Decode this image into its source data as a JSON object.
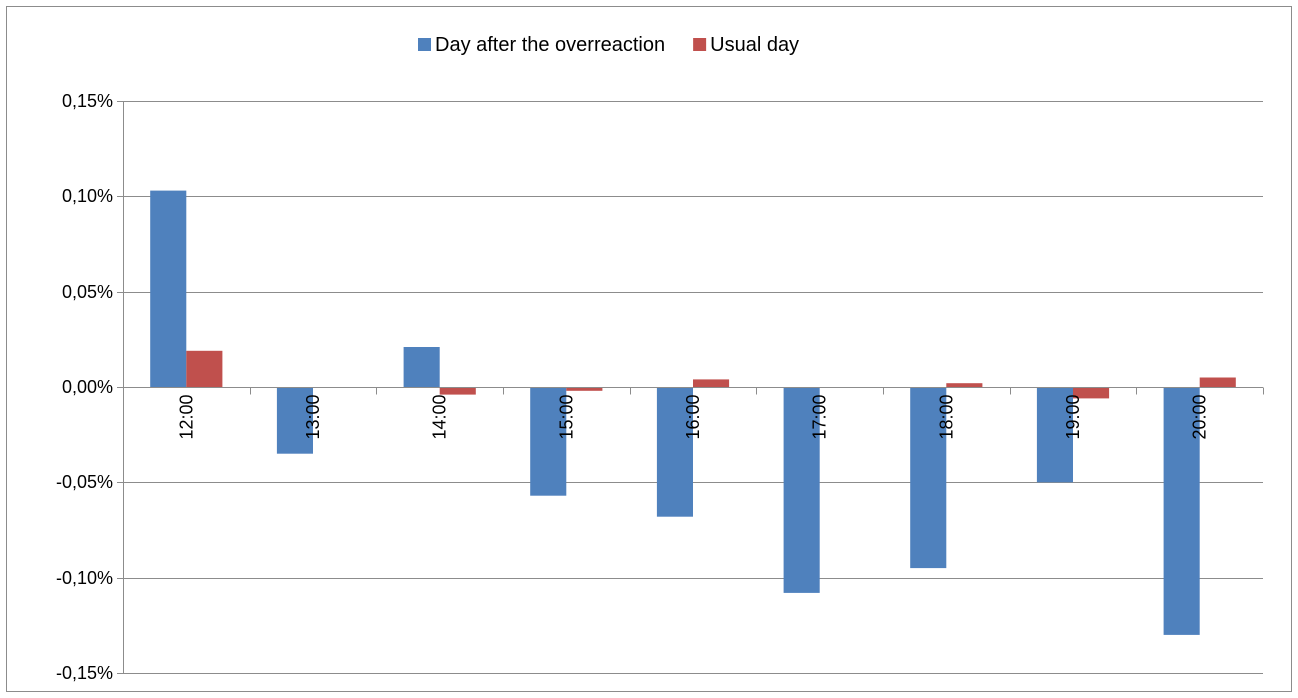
{
  "chart_data": {
    "type": "bar",
    "title": "",
    "xlabel": "",
    "ylabel": "",
    "categories": [
      "12:00",
      "13:00",
      "14:00",
      "15:00",
      "16:00",
      "17:00",
      "18:00",
      "19:00",
      "20:00"
    ],
    "series": [
      {
        "name": "Day after the overreaction",
        "color": "#4f81bd",
        "values": [
          0.103,
          -0.035,
          0.021,
          -0.057,
          -0.068,
          -0.108,
          -0.095,
          -0.05,
          -0.13
        ]
      },
      {
        "name": "Usual day",
        "color": "#c0504d",
        "values": [
          0.019,
          0.0,
          -0.004,
          -0.002,
          0.004,
          0.0,
          0.002,
          -0.006,
          0.005
        ]
      }
    ],
    "ylim": [
      -0.15,
      0.15
    ],
    "y_ticks": [
      0.15,
      0.1,
      0.05,
      0.0,
      -0.05,
      -0.1,
      -0.15
    ],
    "y_tick_labels": [
      "0,15%",
      "0,10%",
      "0,05%",
      "0,00%",
      "-0,05%",
      "-0,10%",
      "-0,15%"
    ],
    "grid": true,
    "legend_position": "top",
    "x_tick_label_rotation": "vertical"
  }
}
